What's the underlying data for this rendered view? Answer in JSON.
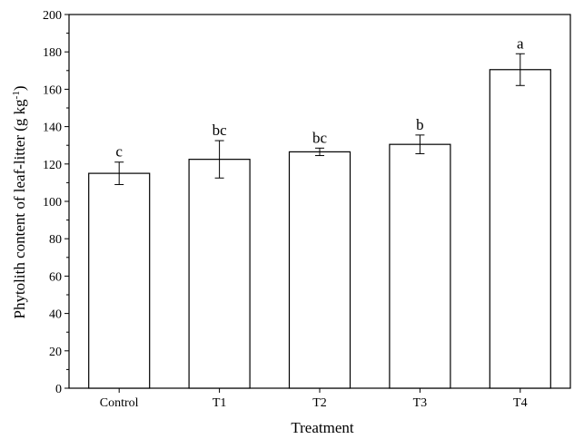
{
  "chart_data": {
    "type": "bar",
    "categories": [
      "Control",
      "T1",
      "T2",
      "T3",
      "T4"
    ],
    "values": [
      115,
      122.5,
      126.5,
      130.5,
      170.5
    ],
    "error": [
      6,
      10,
      2,
      5,
      8.5
    ],
    "significance_letters": [
      "c",
      "bc",
      "bc",
      "b",
      "a"
    ],
    "xlabel": "Treatment",
    "ylabel_main": "Phytolith content of leaf-litter (g kg",
    "ylabel_sup": "-1",
    "ylabel_end": ")",
    "ylim": [
      0,
      200
    ],
    "yticks": [
      0,
      20,
      40,
      60,
      80,
      100,
      120,
      140,
      160,
      180,
      200
    ],
    "grid": false,
    "legend": "none",
    "bar_color": "#ffffff",
    "edge_color": "#000000"
  }
}
